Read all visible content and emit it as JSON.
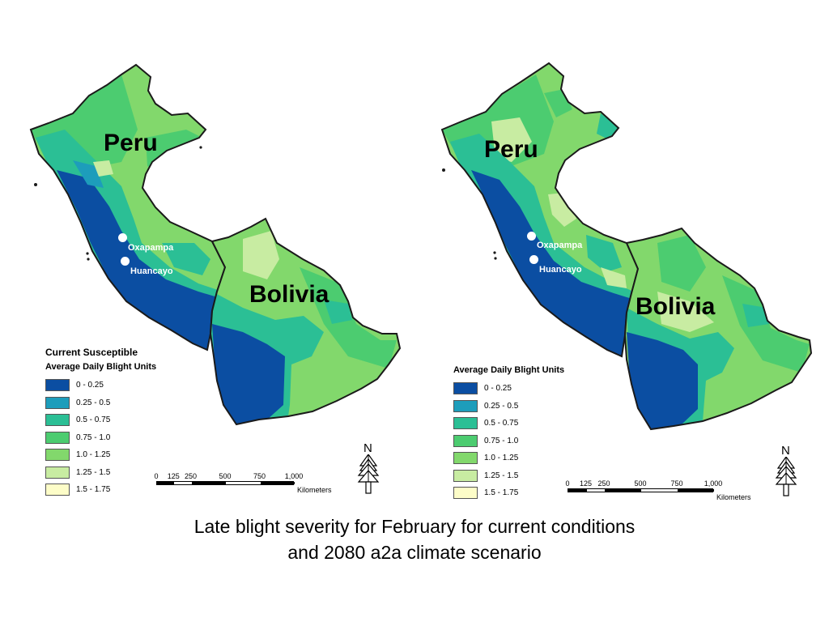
{
  "palette": {
    "outline": "#1a1a1a",
    "bin_colors": [
      "#0b4ea2",
      "#1d9dbb",
      "#2bbf95",
      "#4ccc70",
      "#82d86c",
      "#c8eca2",
      "#fdfdc8"
    ]
  },
  "panels": [
    {
      "id": "current",
      "legend_title": "Current Susceptible",
      "legend_subtitle": "Average Daily Blight Units",
      "labels": {
        "peru": "Peru",
        "bolivia": "Bolivia",
        "city_1": "Oxapampa",
        "city_2": "Huancayo"
      }
    },
    {
      "id": "a2a-2080",
      "legend_title": "",
      "legend_subtitle": "Average Daily Blight Units",
      "labels": {
        "peru": "Peru",
        "bolivia": "Bolivia",
        "city_1": "Oxapampa",
        "city_2": "Huancayo"
      }
    }
  ],
  "legend_bins": [
    "0 - 0.25",
    "0.25 - 0.5",
    "0.5 - 0.75",
    "0.75 - 1.0",
    "1.0 - 1.25",
    "1.25 - 1.5",
    "1.5 - 1.75"
  ],
  "scalebar": {
    "ticks": [
      "0",
      "125",
      "250",
      "500",
      "750",
      "1,000"
    ],
    "unit": "Kilometers"
  },
  "north_arrow": {
    "letter": "N",
    "icon": "north-arrow-icon"
  },
  "caption": {
    "line1": "Late blight severity for February for current conditions",
    "line2": "and 2080 a2a climate scenario"
  }
}
